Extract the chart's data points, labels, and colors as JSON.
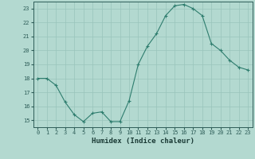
{
  "x": [
    0,
    1,
    2,
    3,
    4,
    5,
    6,
    7,
    8,
    9,
    10,
    11,
    12,
    13,
    14,
    15,
    16,
    17,
    18,
    19,
    20,
    21,
    22,
    23
  ],
  "y": [
    18.0,
    18.0,
    17.5,
    16.3,
    15.4,
    14.9,
    15.5,
    15.6,
    14.9,
    14.9,
    16.4,
    19.0,
    20.3,
    21.2,
    22.5,
    23.2,
    23.3,
    23.0,
    22.5,
    20.5,
    20.0,
    19.3,
    18.8,
    18.6
  ],
  "xlabel": "Humidex (Indice chaleur)",
  "line_color": "#2e7d6e",
  "marker": "+",
  "bg_color": "#b3d9d0",
  "grid_color": "#99c4bb",
  "tick_color": "#2e5d58",
  "label_color": "#1a3a35",
  "ylim": [
    14.5,
    23.5
  ],
  "yticks": [
    15,
    16,
    17,
    18,
    19,
    20,
    21,
    22,
    23
  ],
  "xlim": [
    -0.5,
    23.5
  ],
  "xticks": [
    0,
    1,
    2,
    3,
    4,
    5,
    6,
    7,
    8,
    9,
    10,
    11,
    12,
    13,
    14,
    15,
    16,
    17,
    18,
    19,
    20,
    21,
    22,
    23
  ]
}
